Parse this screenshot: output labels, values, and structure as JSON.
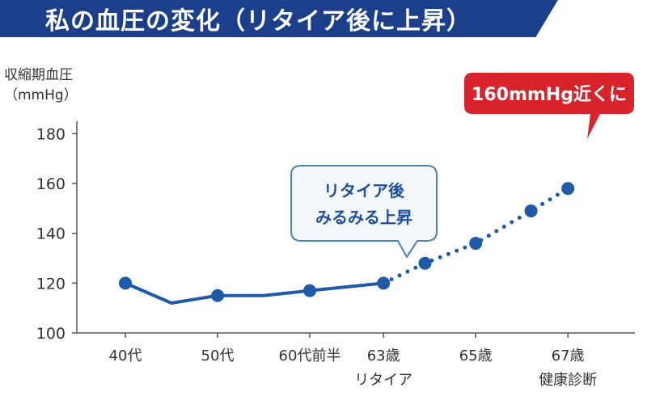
{
  "header": {
    "title": "私の血圧の変化（リタイア後に上昇）"
  },
  "colors": {
    "title_bg": "#1c3f8c",
    "line": "#1f5aa8",
    "axis": "#555555",
    "note_border": "#4a7fc1",
    "note_bg": "#f3f8fd",
    "callout_bg": "#d8232a"
  },
  "chart_data": {
    "type": "line",
    "title": "私の血圧の変化（リタイア後に上昇）",
    "ylabel_line1": "収縮期血圧",
    "ylabel_line2": "（mmHg）",
    "ylim": [
      100,
      185
    ],
    "yticks": [
      100,
      120,
      140,
      160,
      180
    ],
    "xticks": [
      {
        "x": 0,
        "line1": "40代",
        "line2": ""
      },
      {
        "x": 2,
        "line1": "50代",
        "line2": ""
      },
      {
        "x": 4,
        "line1": "60代前半",
        "line2": ""
      },
      {
        "x": 5.6,
        "line1": "63歳",
        "line2": "リタイア"
      },
      {
        "x": 7.6,
        "line1": "65歳",
        "line2": ""
      },
      {
        "x": 9.6,
        "line1": "67歳",
        "line2": "健康診断"
      }
    ],
    "series": [
      {
        "style": "solid",
        "points": [
          {
            "x": 0,
            "y": 120,
            "marker": true
          },
          {
            "x": 1,
            "y": 112,
            "marker": false
          },
          {
            "x": 2,
            "y": 115,
            "marker": true
          },
          {
            "x": 3,
            "y": 115,
            "marker": false
          },
          {
            "x": 4,
            "y": 117,
            "marker": true
          },
          {
            "x": 5.6,
            "y": 120,
            "marker": true
          }
        ]
      },
      {
        "style": "dotted",
        "points": [
          {
            "x": 5.6,
            "y": 120,
            "marker": false
          },
          {
            "x": 6.5,
            "y": 128,
            "marker": true
          },
          {
            "x": 7.6,
            "y": 136,
            "marker": true
          },
          {
            "x": 8.8,
            "y": 149,
            "marker": true
          },
          {
            "x": 9.6,
            "y": 158,
            "marker": true
          }
        ]
      }
    ],
    "annotations": {
      "note_line1": "リタイア後",
      "note_line2": "みるみる上昇",
      "callout": "160mmHg近くに"
    }
  }
}
